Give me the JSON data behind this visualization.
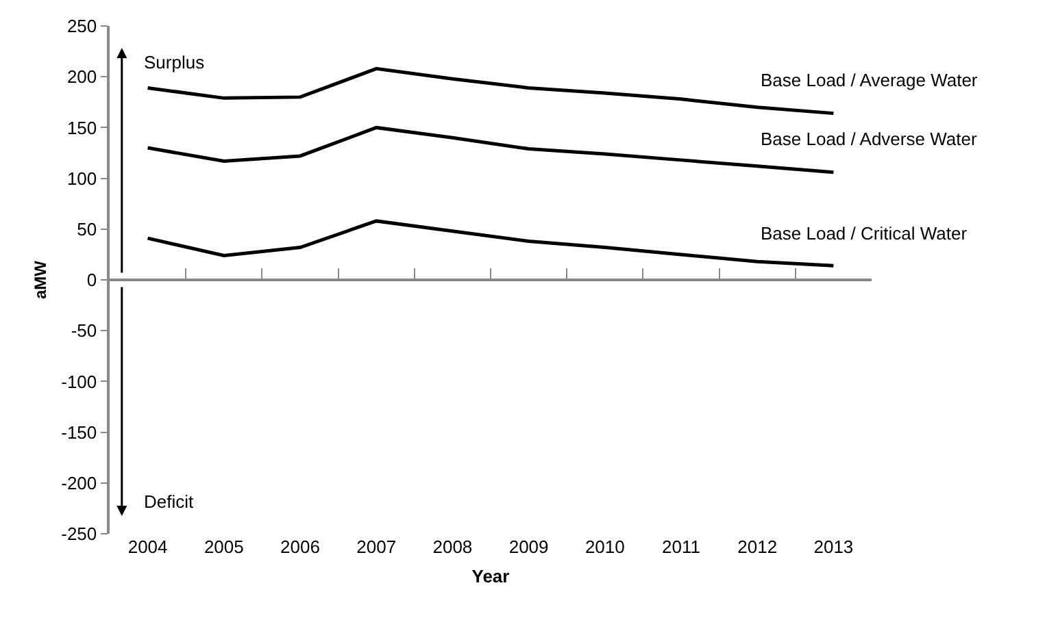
{
  "chart_data": {
    "type": "line",
    "xlabel": "Year",
    "ylabel": "aMW",
    "categories": [
      "2004",
      "2005",
      "2006",
      "2007",
      "2008",
      "2009",
      "2010",
      "2011",
      "2012",
      "2013"
    ],
    "series": [
      {
        "name": "Base Load / Average Water",
        "color": "#000000",
        "values": [
          189,
          179,
          180,
          208,
          198,
          189,
          184,
          178,
          170,
          164
        ]
      },
      {
        "name": "Base Load / Adverse Water",
        "color": "#000000",
        "values": [
          130,
          117,
          122,
          150,
          140,
          129,
          124,
          118,
          112,
          106
        ]
      },
      {
        "name": "Base Load / Critical Water",
        "color": "#000000",
        "values": [
          41,
          24,
          32,
          58,
          48,
          38,
          32,
          25,
          18,
          14
        ]
      }
    ],
    "ylim": [
      -250,
      250
    ],
    "yticks": [
      -250,
      -200,
      -150,
      -100,
      -50,
      0,
      50,
      100,
      150,
      200,
      250
    ],
    "annotations": [
      "Surplus",
      "Deficit"
    ],
    "ref_lines": [
      {
        "axis": "y",
        "value": 0,
        "color": "#888888"
      }
    ],
    "legend": false,
    "marker": "none",
    "line_style": "solid"
  }
}
